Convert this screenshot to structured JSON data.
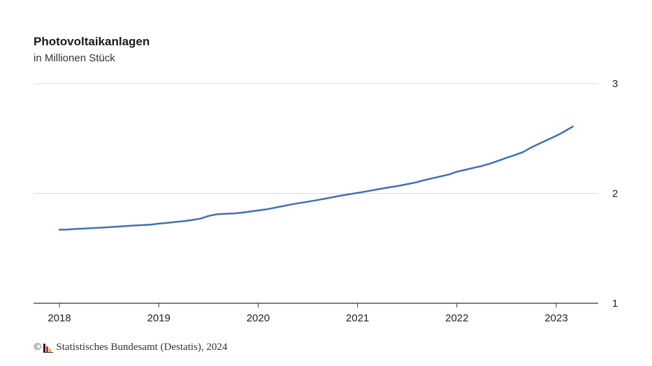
{
  "chart_data": {
    "type": "line",
    "title": "Photovoltaikanlagen",
    "subtitle": "in Millionen Stück",
    "xlabel": "",
    "ylabel": "",
    "x_tick_labels": [
      "2018",
      "2019",
      "2020",
      "2021",
      "2022",
      "2023"
    ],
    "y_tick_labels": [
      "1",
      "2",
      "3"
    ],
    "xlim": [
      2018.0,
      2023.25
    ],
    "ylim": [
      1,
      3
    ],
    "y_axis_position": "right",
    "grid": "horizontal",
    "line_color": "#3f6fba",
    "series": [
      {
        "x": [
          2018.0,
          2018.083,
          2018.167,
          2018.25,
          2018.333,
          2018.417,
          2018.5,
          2018.583,
          2018.667,
          2018.75,
          2018.833,
          2018.917,
          2019.0,
          2019.083,
          2019.167,
          2019.25,
          2019.333,
          2019.417,
          2019.5,
          2019.583,
          2019.667,
          2019.75,
          2019.833,
          2019.917,
          2020.0,
          2020.083,
          2020.167,
          2020.25,
          2020.333,
          2020.417,
          2020.5,
          2020.583,
          2020.667,
          2020.75,
          2020.833,
          2020.917,
          2021.0,
          2021.083,
          2021.167,
          2021.25,
          2021.333,
          2021.417,
          2021.5,
          2021.583,
          2021.667,
          2021.75,
          2021.833,
          2021.917,
          2022.0,
          2022.083,
          2022.167,
          2022.25,
          2022.333,
          2022.417,
          2022.5,
          2022.583,
          2022.667,
          2022.75,
          2022.833,
          2022.917,
          2023.0,
          2023.083,
          2023.167
        ],
        "values": [
          1.67,
          1.671,
          1.677,
          1.68,
          1.685,
          1.688,
          1.693,
          1.698,
          1.703,
          1.708,
          1.712,
          1.716,
          1.725,
          1.732,
          1.74,
          1.748,
          1.758,
          1.77,
          1.795,
          1.81,
          1.815,
          1.818,
          1.825,
          1.835,
          1.845,
          1.855,
          1.87,
          1.885,
          1.9,
          1.913,
          1.925,
          1.938,
          1.952,
          1.966,
          1.98,
          1.993,
          2.005,
          2.018,
          2.032,
          2.045,
          2.058,
          2.07,
          2.085,
          2.1,
          2.12,
          2.138,
          2.155,
          2.172,
          2.198,
          2.215,
          2.233,
          2.25,
          2.272,
          2.298,
          2.325,
          2.35,
          2.377,
          2.42,
          2.455,
          2.49,
          2.525,
          2.565,
          2.61
        ]
      }
    ]
  },
  "footer": {
    "copyright": "©",
    "text": "Statistisches Bundesamt (Destatis), 2024",
    "logo_colors": [
      "#1a1a1a",
      "#d42a2a",
      "#f0b400"
    ]
  }
}
